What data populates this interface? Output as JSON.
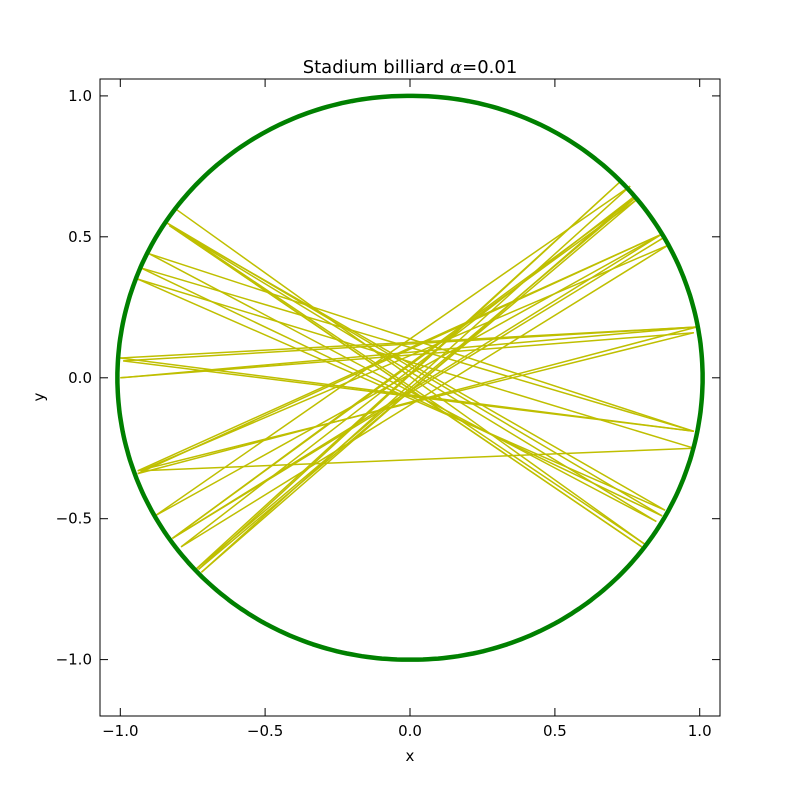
{
  "chart_data": {
    "type": "line",
    "title": "Stadium billiard α=0.01",
    "title_prefix": "Stadium billiard ",
    "title_symbol": "α",
    "title_suffix": "=0.01",
    "xlabel": "x",
    "ylabel": "y",
    "xlim": [
      -1.07,
      1.07
    ],
    "ylim": [
      -1.2,
      1.06
    ],
    "grid": false,
    "x_ticks": [
      -1.0,
      -0.5,
      0.0,
      0.5,
      1.0
    ],
    "x_tick_labels": [
      "−1.0",
      "−0.5",
      "0.0",
      "0.5",
      "1.0"
    ],
    "y_ticks": [
      1.0,
      0.5,
      0.0,
      -0.5,
      -1.0
    ],
    "y_tick_labels": [
      "1.0",
      "0.5",
      "0.0",
      "−0.5",
      "−1.0"
    ],
    "series": [
      {
        "kind": "boundary",
        "color": "#008000",
        "shape": "stadium",
        "alpha": 0.01,
        "radius": 1.0
      },
      {
        "kind": "trajectory",
        "color": "#bfbf00",
        "points": [
          [
            -0.81,
            0.6
          ],
          [
            0.81,
            -0.59
          ],
          [
            -0.84,
            0.55
          ],
          [
            0.87,
            -0.49
          ],
          [
            -0.93,
            0.39
          ],
          [
            0.98,
            -0.19
          ],
          [
            -1.0,
            0.07
          ],
          [
            0.99,
            0.18
          ],
          [
            -1.0,
            0.0
          ],
          [
            0.98,
            0.16
          ],
          [
            -0.94,
            -0.33
          ],
          [
            0.87,
            0.51
          ],
          [
            -0.88,
            -0.49
          ],
          [
            0.76,
            0.68
          ],
          [
            -0.72,
            -0.69
          ],
          [
            0.77,
            0.64
          ],
          [
            -0.79,
            -0.6
          ],
          [
            0.89,
            0.47
          ],
          [
            -0.93,
            -0.33
          ],
          [
            0.98,
            -0.25
          ],
          [
            -0.94,
            0.35
          ],
          [
            0.88,
            -0.47
          ],
          [
            -0.83,
            0.54
          ],
          [
            0.8,
            -0.6
          ],
          [
            -0.83,
            0.54
          ],
          [
            0.85,
            -0.51
          ],
          [
            -0.9,
            0.44
          ],
          [
            0.98,
            -0.19
          ],
          [
            -0.99,
            0.06
          ],
          [
            0.99,
            0.18
          ],
          [
            -0.94,
            -0.34
          ],
          [
            0.87,
            0.51
          ],
          [
            -0.82,
            -0.57
          ],
          [
            0.78,
            0.64
          ],
          [
            -0.74,
            -0.68
          ],
          [
            0.73,
            0.7
          ],
          [
            -0.73,
            -0.68
          ],
          [
            0.78,
            0.63
          ],
          [
            -0.82,
            -0.57
          ],
          [
            0.88,
            0.5
          ]
        ]
      }
    ]
  }
}
